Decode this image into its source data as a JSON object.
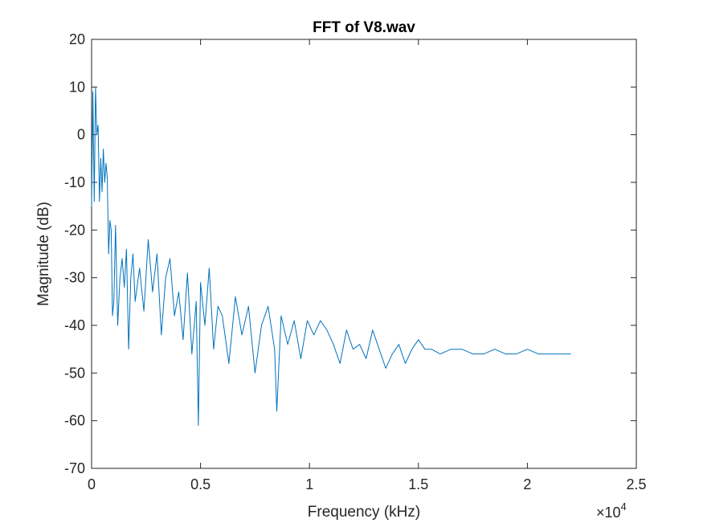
{
  "chart_data": {
    "type": "line",
    "title": "FFT of V8.wav",
    "xlabel": "Frequency (kHz)",
    "ylabel": "Magnitude (dB)",
    "x_exponent_base": "×10",
    "x_exponent_power": "4",
    "xlim": [
      0,
      25000
    ],
    "ylim": [
      -70,
      20
    ],
    "x_ticks": [
      0,
      5000,
      10000,
      15000,
      20000,
      25000
    ],
    "x_tick_labels": [
      "0",
      "0.5",
      "1",
      "1.5",
      "2",
      "2.5"
    ],
    "y_ticks": [
      -70,
      -60,
      -50,
      -40,
      -30,
      -20,
      -10,
      0,
      10,
      20
    ],
    "y_tick_labels": [
      "-70",
      "-60",
      "-50",
      "-40",
      "-30",
      "-20",
      "-10",
      "0",
      "10",
      "20"
    ],
    "grid": false,
    "legend": "none",
    "series_color": "#0072BD",
    "series": [
      {
        "x": [
          0,
          60,
          120,
          180,
          240,
          300,
          360,
          420,
          480,
          540,
          600,
          660,
          720,
          780,
          840,
          900,
          960,
          1020,
          1100,
          1200,
          1300,
          1400,
          1500,
          1600,
          1700,
          1800,
          1900,
          2000,
          2200,
          2400,
          2600,
          2800,
          3000,
          3200,
          3400,
          3600,
          3800,
          4000,
          4200,
          4400,
          4600,
          4800,
          4900,
          5000,
          5200,
          5400,
          5600,
          5800,
          6000,
          6300,
          6600,
          6900,
          7200,
          7500,
          7800,
          8100,
          8400,
          8500,
          8700,
          9000,
          9300,
          9600,
          9900,
          10200,
          10500,
          10800,
          11100,
          11400,
          11700,
          12000,
          12300,
          12600,
          12900,
          13200,
          13500,
          13800,
          14100,
          14400,
          14700,
          15000,
          15300,
          15600,
          16000,
          16500,
          17000,
          17500,
          18000,
          18500,
          19000,
          19500,
          20000,
          20500,
          21000,
          21500,
          22000
        ],
        "y": [
          -15,
          9,
          -14,
          10,
          0,
          2,
          -14,
          -5,
          -12,
          -3,
          -10,
          -6,
          -9,
          -25,
          -18,
          -20,
          -38,
          -35,
          -19,
          -40,
          -30,
          -26,
          -32,
          -24,
          -45,
          -30,
          -25,
          -35,
          -28,
          -37,
          -22,
          -33,
          -25,
          -42,
          -30,
          -26,
          -38,
          -33,
          -43,
          -29,
          -46,
          -35,
          -61,
          -31,
          -40,
          -28,
          -45,
          -36,
          -38,
          -48,
          -34,
          -42,
          -36,
          -50,
          -40,
          -36,
          -45,
          -58,
          -38,
          -44,
          -39,
          -47,
          -39,
          -42,
          -39,
          -41,
          -44,
          -48,
          -41,
          -45,
          -44,
          -47,
          -41,
          -45,
          -49,
          -46,
          -44,
          -48,
          -45,
          -43,
          -45,
          -45,
          -46,
          -45,
          -45,
          -46,
          -46,
          -45,
          -46,
          -46,
          -45,
          -46,
          -46,
          -46,
          -46
        ]
      }
    ]
  }
}
